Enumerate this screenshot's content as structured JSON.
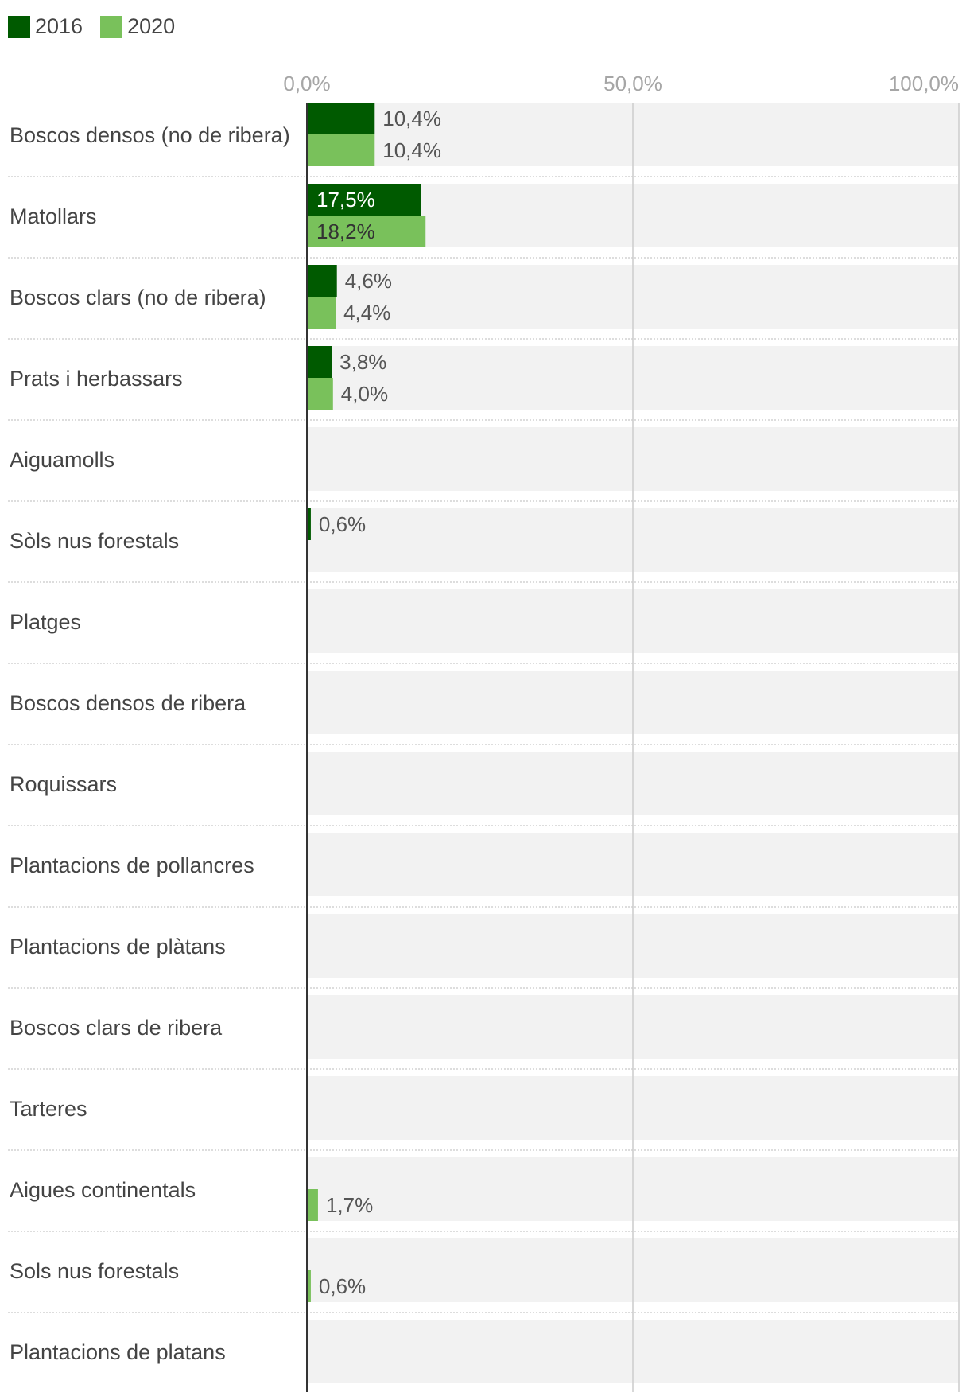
{
  "colors": {
    "2016": "#005a00",
    "2020": "#79c15b",
    "row_bg": "#f2f2f2",
    "grid": "#cccccc"
  },
  "chart_data": {
    "type": "bar",
    "orientation": "horizontal",
    "xlim": [
      0,
      100
    ],
    "ticks": [
      "0,0%",
      "50,0%",
      "100,0%"
    ],
    "tick_values": [
      0,
      50,
      100
    ],
    "legend_position": "top-left",
    "series": [
      {
        "name": "2016",
        "color": "#005a00",
        "values": [
          10.4,
          17.5,
          4.6,
          3.8,
          null,
          0.6,
          null,
          null,
          null,
          null,
          null,
          null,
          null,
          null,
          null,
          null
        ],
        "labels": [
          "10,4%",
          "17,5%",
          "4,6%",
          "3,8%",
          "",
          "0,6%",
          "",
          "",
          "",
          "",
          "",
          "",
          "",
          "",
          "",
          ""
        ]
      },
      {
        "name": "2020",
        "color": "#79c15b",
        "values": [
          10.4,
          18.2,
          4.4,
          4.0,
          null,
          null,
          null,
          null,
          null,
          null,
          null,
          null,
          null,
          1.7,
          0.6,
          null
        ],
        "labels": [
          "10,4%",
          "18,2%",
          "4,4%",
          "4,0%",
          "",
          "",
          "",
          "",
          "",
          "",
          "",
          "",
          "",
          "1,7%",
          "0,6%",
          ""
        ]
      }
    ],
    "categories": [
      "Boscos densos (no de ribera)",
      "Matollars",
      "Boscos clars (no de ribera)",
      "Prats i herbassars",
      "Aiguamolls",
      "Sòls nus forestals",
      "Platges",
      "Boscos densos de ribera",
      "Roquissars",
      "Plantacions de pollancres",
      "Plantacions de plàtans",
      "Boscos clars de ribera",
      "Tarteres",
      "Aigues continentals",
      "Sols nus forestals",
      "Plantacions de platans"
    ]
  }
}
